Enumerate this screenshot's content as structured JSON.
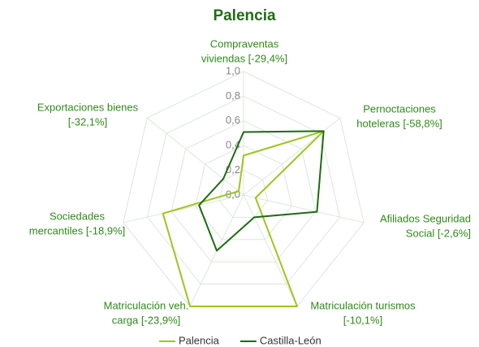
{
  "chart_data": {
    "type": "radar",
    "title": "Palencia",
    "categories": [
      [
        "Compraventas",
        "viviendas [-29,4%]"
      ],
      [
        "Pernoctaciones",
        "hoteleras [-58,8%]"
      ],
      [
        "Afiliados Seguridad",
        "Social [-2,6%]"
      ],
      [
        "Matriculación turismos",
        "[-10,1%]"
      ],
      [
        "Matriculación veh.",
        "carga [-23,9%]"
      ],
      [
        "Sociedades",
        "mercantiles [-18,9%]"
      ],
      [
        "Exportaciones bienes",
        "[-32,1%]"
      ]
    ],
    "series": [
      {
        "name": "Palencia",
        "color": "#9ec51f",
        "values": [
          0.32,
          0.83,
          0.1,
          1.0,
          1.0,
          0.67,
          0.05
        ]
      },
      {
        "name": "Castilla-León",
        "color": "#1d6b12",
        "values": [
          0.51,
          0.83,
          0.61,
          0.2,
          0.5,
          0.37,
          0.21
        ]
      }
    ],
    "ylim": [
      0,
      1
    ],
    "yticks": [
      {
        "value": 0,
        "label": "0,0"
      },
      {
        "value": 0.2,
        "label": "0,2"
      },
      {
        "value": 0.4,
        "label": "0,4"
      },
      {
        "value": 0.6,
        "label": "0,6"
      },
      {
        "value": 0.8,
        "label": "0,8"
      },
      {
        "value": 1,
        "label": "1,0"
      }
    ],
    "grid": true,
    "legend": "bottom"
  }
}
